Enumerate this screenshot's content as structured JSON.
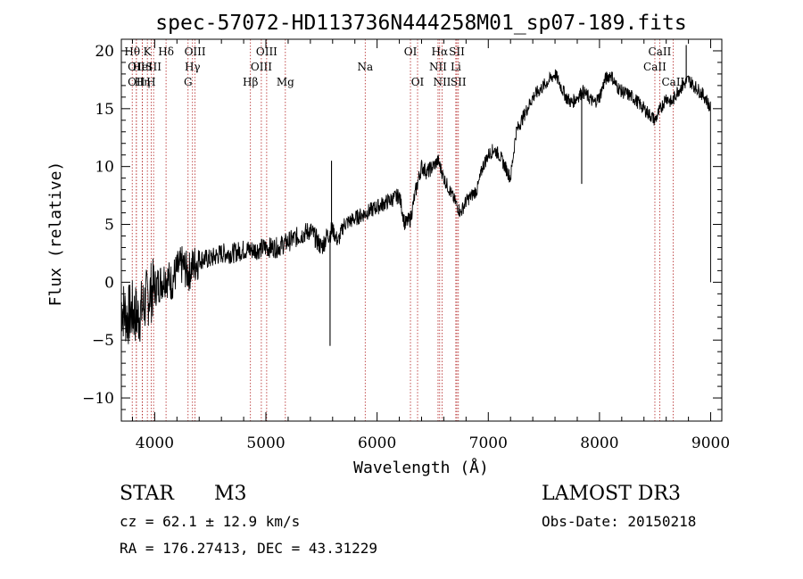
{
  "chart_data": {
    "type": "line",
    "title": "spec-57072-HD113736N444258M01_sp07-189.fits",
    "xlabel": "Wavelength (Å)",
    "ylabel": "Flux (relative)",
    "xlim": [
      3700,
      9100
    ],
    "ylim": [
      -12,
      21
    ],
    "x_ticks": [
      4000,
      5000,
      6000,
      7000,
      8000,
      9000
    ],
    "x_tick_labels": [
      "4000",
      "5000",
      "6000",
      "7000",
      "8000",
      "9000"
    ],
    "y_ticks": [
      -10,
      -5,
      0,
      5,
      10,
      15,
      20
    ],
    "y_tick_labels": [
      "−10",
      "−5",
      "0",
      "5",
      "10",
      "15",
      "20"
    ],
    "line_color": "#000000",
    "marker_color": "#b22222",
    "spectrum": {
      "x": [
        3700,
        3750,
        3800,
        3850,
        3900,
        3950,
        4000,
        4050,
        4100,
        4150,
        4200,
        4250,
        4300,
        4350,
        4400,
        4500,
        4600,
        4700,
        4800,
        4900,
        5000,
        5100,
        5200,
        5300,
        5400,
        5500,
        5550,
        5600,
        5650,
        5700,
        5800,
        5900,
        6000,
        6100,
        6200,
        6250,
        6300,
        6350,
        6400,
        6450,
        6500,
        6550,
        6600,
        6650,
        6700,
        6750,
        6800,
        6900,
        6950,
        7000,
        7050,
        7100,
        7150,
        7200,
        7250,
        7300,
        7350,
        7400,
        7450,
        7500,
        7550,
        7600,
        7650,
        7700,
        7750,
        7800,
        7850,
        7900,
        7950,
        8000,
        8050,
        8100,
        8150,
        8200,
        8300,
        8400,
        8450,
        8500,
        8550,
        8600,
        8650,
        8700,
        8750,
        8800,
        8850,
        8900,
        8950,
        9000
      ],
      "y": [
        -2,
        -3,
        -2.5,
        -3,
        -2,
        -1,
        -0.5,
        0,
        0.5,
        0,
        1,
        1.5,
        0.8,
        1.5,
        2,
        2,
        2.5,
        2.5,
        2.8,
        2.8,
        3,
        3,
        3.5,
        4,
        4.5,
        3,
        4,
        4.5,
        3.5,
        5,
        5.5,
        6,
        6.5,
        7,
        7.5,
        5,
        5.5,
        8,
        10,
        9.5,
        10,
        10.5,
        9,
        8,
        7,
        6,
        7,
        8,
        10,
        11,
        11.5,
        11,
        10,
        9,
        13,
        14,
        15,
        16,
        16.5,
        17,
        17.5,
        18,
        17,
        16,
        15.5,
        16,
        16.5,
        16,
        15.5,
        16,
        17.5,
        18,
        17,
        16.5,
        16,
        15,
        14.5,
        14,
        15,
        16,
        15.5,
        16.5,
        17,
        17.5,
        17,
        16.5,
        16,
        15
      ]
    },
    "spikes": [
      {
        "x": 5577,
        "y": -5.5
      },
      {
        "x": 5590,
        "y": 10.5
      },
      {
        "x": 7840,
        "y": 8.5
      },
      {
        "x": 8780,
        "y": 20.5
      }
    ],
    "line_markers": [
      {
        "wavelength": 3798,
        "label": "Hθ",
        "row": 0
      },
      {
        "wavelength": 3835,
        "label": "OII",
        "row": 1
      },
      {
        "wavelength": 3835,
        "label": "OII",
        "row": 2
      },
      {
        "wavelength": 3889,
        "label": "HeI",
        "row": 1
      },
      {
        "wavelength": 3889,
        "label": "Hη",
        "row": 2
      },
      {
        "wavelength": 3934,
        "label": "K",
        "row": 0
      },
      {
        "wavelength": 3968,
        "label": "H",
        "row": 2
      },
      {
        "wavelength": 3990,
        "label": "SII",
        "row": 1
      },
      {
        "wavelength": 4102,
        "label": "Hδ",
        "row": 0
      },
      {
        "wavelength": 4300,
        "label": "G",
        "row": 2
      },
      {
        "wavelength": 4340,
        "label": "Hγ",
        "row": 1
      },
      {
        "wavelength": 4363,
        "label": "OIII",
        "row": 0
      },
      {
        "wavelength": 4861,
        "label": "Hβ",
        "row": 2
      },
      {
        "wavelength": 4959,
        "label": "OIII",
        "row": 1
      },
      {
        "wavelength": 5007,
        "label": "OIII",
        "row": 0
      },
      {
        "wavelength": 5175,
        "label": "Mg",
        "row": 2
      },
      {
        "wavelength": 5893,
        "label": "Na",
        "row": 1
      },
      {
        "wavelength": 6300,
        "label": "OI",
        "row": 0
      },
      {
        "wavelength": 6364,
        "label": "OI",
        "row": 2
      },
      {
        "wavelength": 6548,
        "label": "NII",
        "row": 1
      },
      {
        "wavelength": 6563,
        "label": "Hα",
        "row": 0
      },
      {
        "wavelength": 6584,
        "label": "NII",
        "row": 2
      },
      {
        "wavelength": 6708,
        "label": "Li",
        "row": 1
      },
      {
        "wavelength": 6717,
        "label": "SII",
        "row": 0
      },
      {
        "wavelength": 6731,
        "label": "SII",
        "row": 2
      },
      {
        "wavelength": 8498,
        "label": "CaII",
        "row": 1
      },
      {
        "wavelength": 8542,
        "label": "CaII",
        "row": 0
      },
      {
        "wavelength": 8662,
        "label": "CaII",
        "row": 2
      }
    ]
  },
  "info": {
    "object_class": "STAR",
    "subclass": "M3",
    "survey": "LAMOST DR3",
    "cz": "cz = 62.1 ± 12.9 km/s",
    "obs_date": "Obs-Date: 20150218",
    "coords": "RA = 176.27413, DEC =  43.31229"
  }
}
